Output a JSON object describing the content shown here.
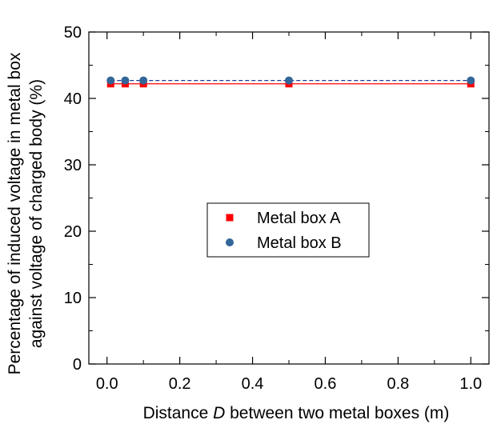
{
  "chart_data": {
    "type": "scatter",
    "xlabel": {
      "before": "Distance ",
      "italic": "D",
      "after": " between two metal boxes (m)"
    },
    "ylabel": [
      "Percentage of induced voltage in metal box",
      "against voltage of charged body (%)"
    ],
    "xlim": [
      -0.05,
      1.05
    ],
    "ylim": [
      0,
      50
    ],
    "xticks": [
      0.0,
      0.2,
      0.4,
      0.6,
      0.8,
      1.0
    ],
    "xtick_labels": [
      "0.0",
      "0.2",
      "0.4",
      "0.6",
      "0.8",
      "1.0"
    ],
    "yticks": [
      0,
      10,
      20,
      30,
      40,
      50
    ],
    "ytick_labels": [
      "0",
      "10",
      "20",
      "30",
      "40",
      "50"
    ],
    "grid": false,
    "legend_position": "center",
    "series": [
      {
        "name": "Metal box A",
        "marker": "square",
        "color": "#ff0000",
        "line_style": "solid",
        "fit_value": 42.2,
        "x": [
          0.01,
          0.05,
          0.1,
          0.5,
          1.0
        ],
        "y": [
          42.2,
          42.2,
          42.2,
          42.2,
          42.2
        ]
      },
      {
        "name": "Metal box B",
        "marker": "circle",
        "color": "#336699",
        "line_color": "#1f3a93",
        "line_style": "dashed",
        "fit_value": 42.7,
        "x": [
          0.01,
          0.05,
          0.1,
          0.5,
          1.0
        ],
        "y": [
          42.7,
          42.7,
          42.7,
          42.7,
          42.7
        ]
      }
    ]
  }
}
